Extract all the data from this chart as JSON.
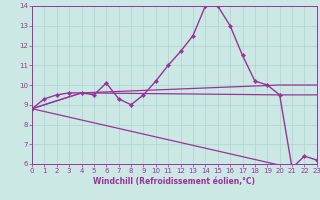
{
  "xlabel": "Windchill (Refroidissement éolien,°C)",
  "xlim": [
    0,
    23
  ],
  "ylim": [
    6,
    14
  ],
  "yticks": [
    6,
    7,
    8,
    9,
    10,
    11,
    12,
    13,
    14
  ],
  "xticks": [
    0,
    1,
    2,
    3,
    4,
    5,
    6,
    7,
    8,
    9,
    10,
    11,
    12,
    13,
    14,
    15,
    16,
    17,
    18,
    19,
    20,
    21,
    22,
    23
  ],
  "background_color": "#cce8e5",
  "grid_color": "#aad4d0",
  "line_color": "#993399",
  "main_x": [
    0,
    1,
    2,
    3,
    4,
    5,
    6,
    7,
    8,
    9,
    10,
    11,
    12,
    13,
    14,
    15,
    16,
    17,
    18,
    19,
    20,
    21,
    22,
    23
  ],
  "main_y": [
    8.8,
    9.3,
    9.5,
    9.6,
    9.6,
    9.5,
    10.1,
    9.3,
    9.0,
    9.5,
    10.2,
    11.0,
    11.7,
    12.5,
    14.0,
    14.0,
    13.0,
    11.5,
    10.2,
    10.0,
    9.5,
    5.8,
    6.4,
    6.2
  ],
  "extra_lines": [
    {
      "x": [
        0,
        4,
        20,
        20,
        23
      ],
      "y": [
        8.8,
        9.6,
        10.0,
        10.0,
        10.0
      ]
    },
    {
      "x": [
        0,
        4,
        20,
        23
      ],
      "y": [
        8.8,
        9.6,
        9.5,
        9.5
      ]
    },
    {
      "x": [
        0,
        21
      ],
      "y": [
        8.8,
        5.8
      ]
    }
  ]
}
